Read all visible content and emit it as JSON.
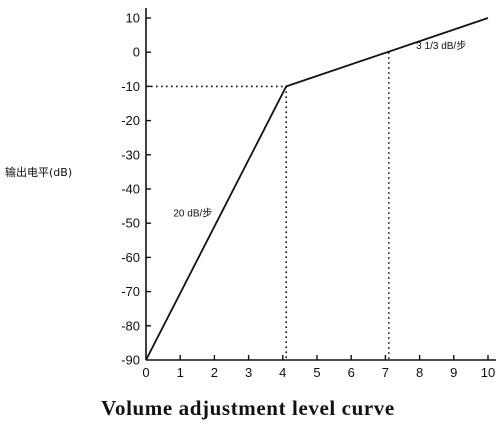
{
  "chart_data": {
    "type": "line",
    "title": "Volume adjustment level curve",
    "ylabel": "输出电平(dB)",
    "xlabel": "",
    "xlim": [
      0,
      10
    ],
    "ylim": [
      -90,
      10
    ],
    "x_ticks": [
      "0",
      "1",
      "2",
      "3",
      "4",
      "5",
      "6",
      "7",
      "8",
      "9",
      "10"
    ],
    "y_ticks": [
      "10",
      "0",
      "-10",
      "-20",
      "-30",
      "-40",
      "-50",
      "-60",
      "-70",
      "-80",
      "-90"
    ],
    "series": [
      {
        "points": [
          [
            0,
            -90
          ],
          [
            4.1,
            -10
          ],
          [
            10,
            10
          ]
        ]
      }
    ],
    "reference_lines": [
      {
        "points": [
          [
            0,
            -10
          ],
          [
            4.1,
            -10
          ]
        ]
      },
      {
        "points": [
          [
            4.1,
            -10
          ],
          [
            4.1,
            -90
          ]
        ]
      },
      {
        "points": [
          [
            7.1,
            0
          ],
          [
            7.1,
            -90
          ]
        ]
      }
    ],
    "annotations": [
      {
        "text": "20 dB/步",
        "x": 0.8,
        "y": -48
      },
      {
        "text": "3  1/3 dB/步",
        "x": 7.9,
        "y": 1
      }
    ]
  }
}
